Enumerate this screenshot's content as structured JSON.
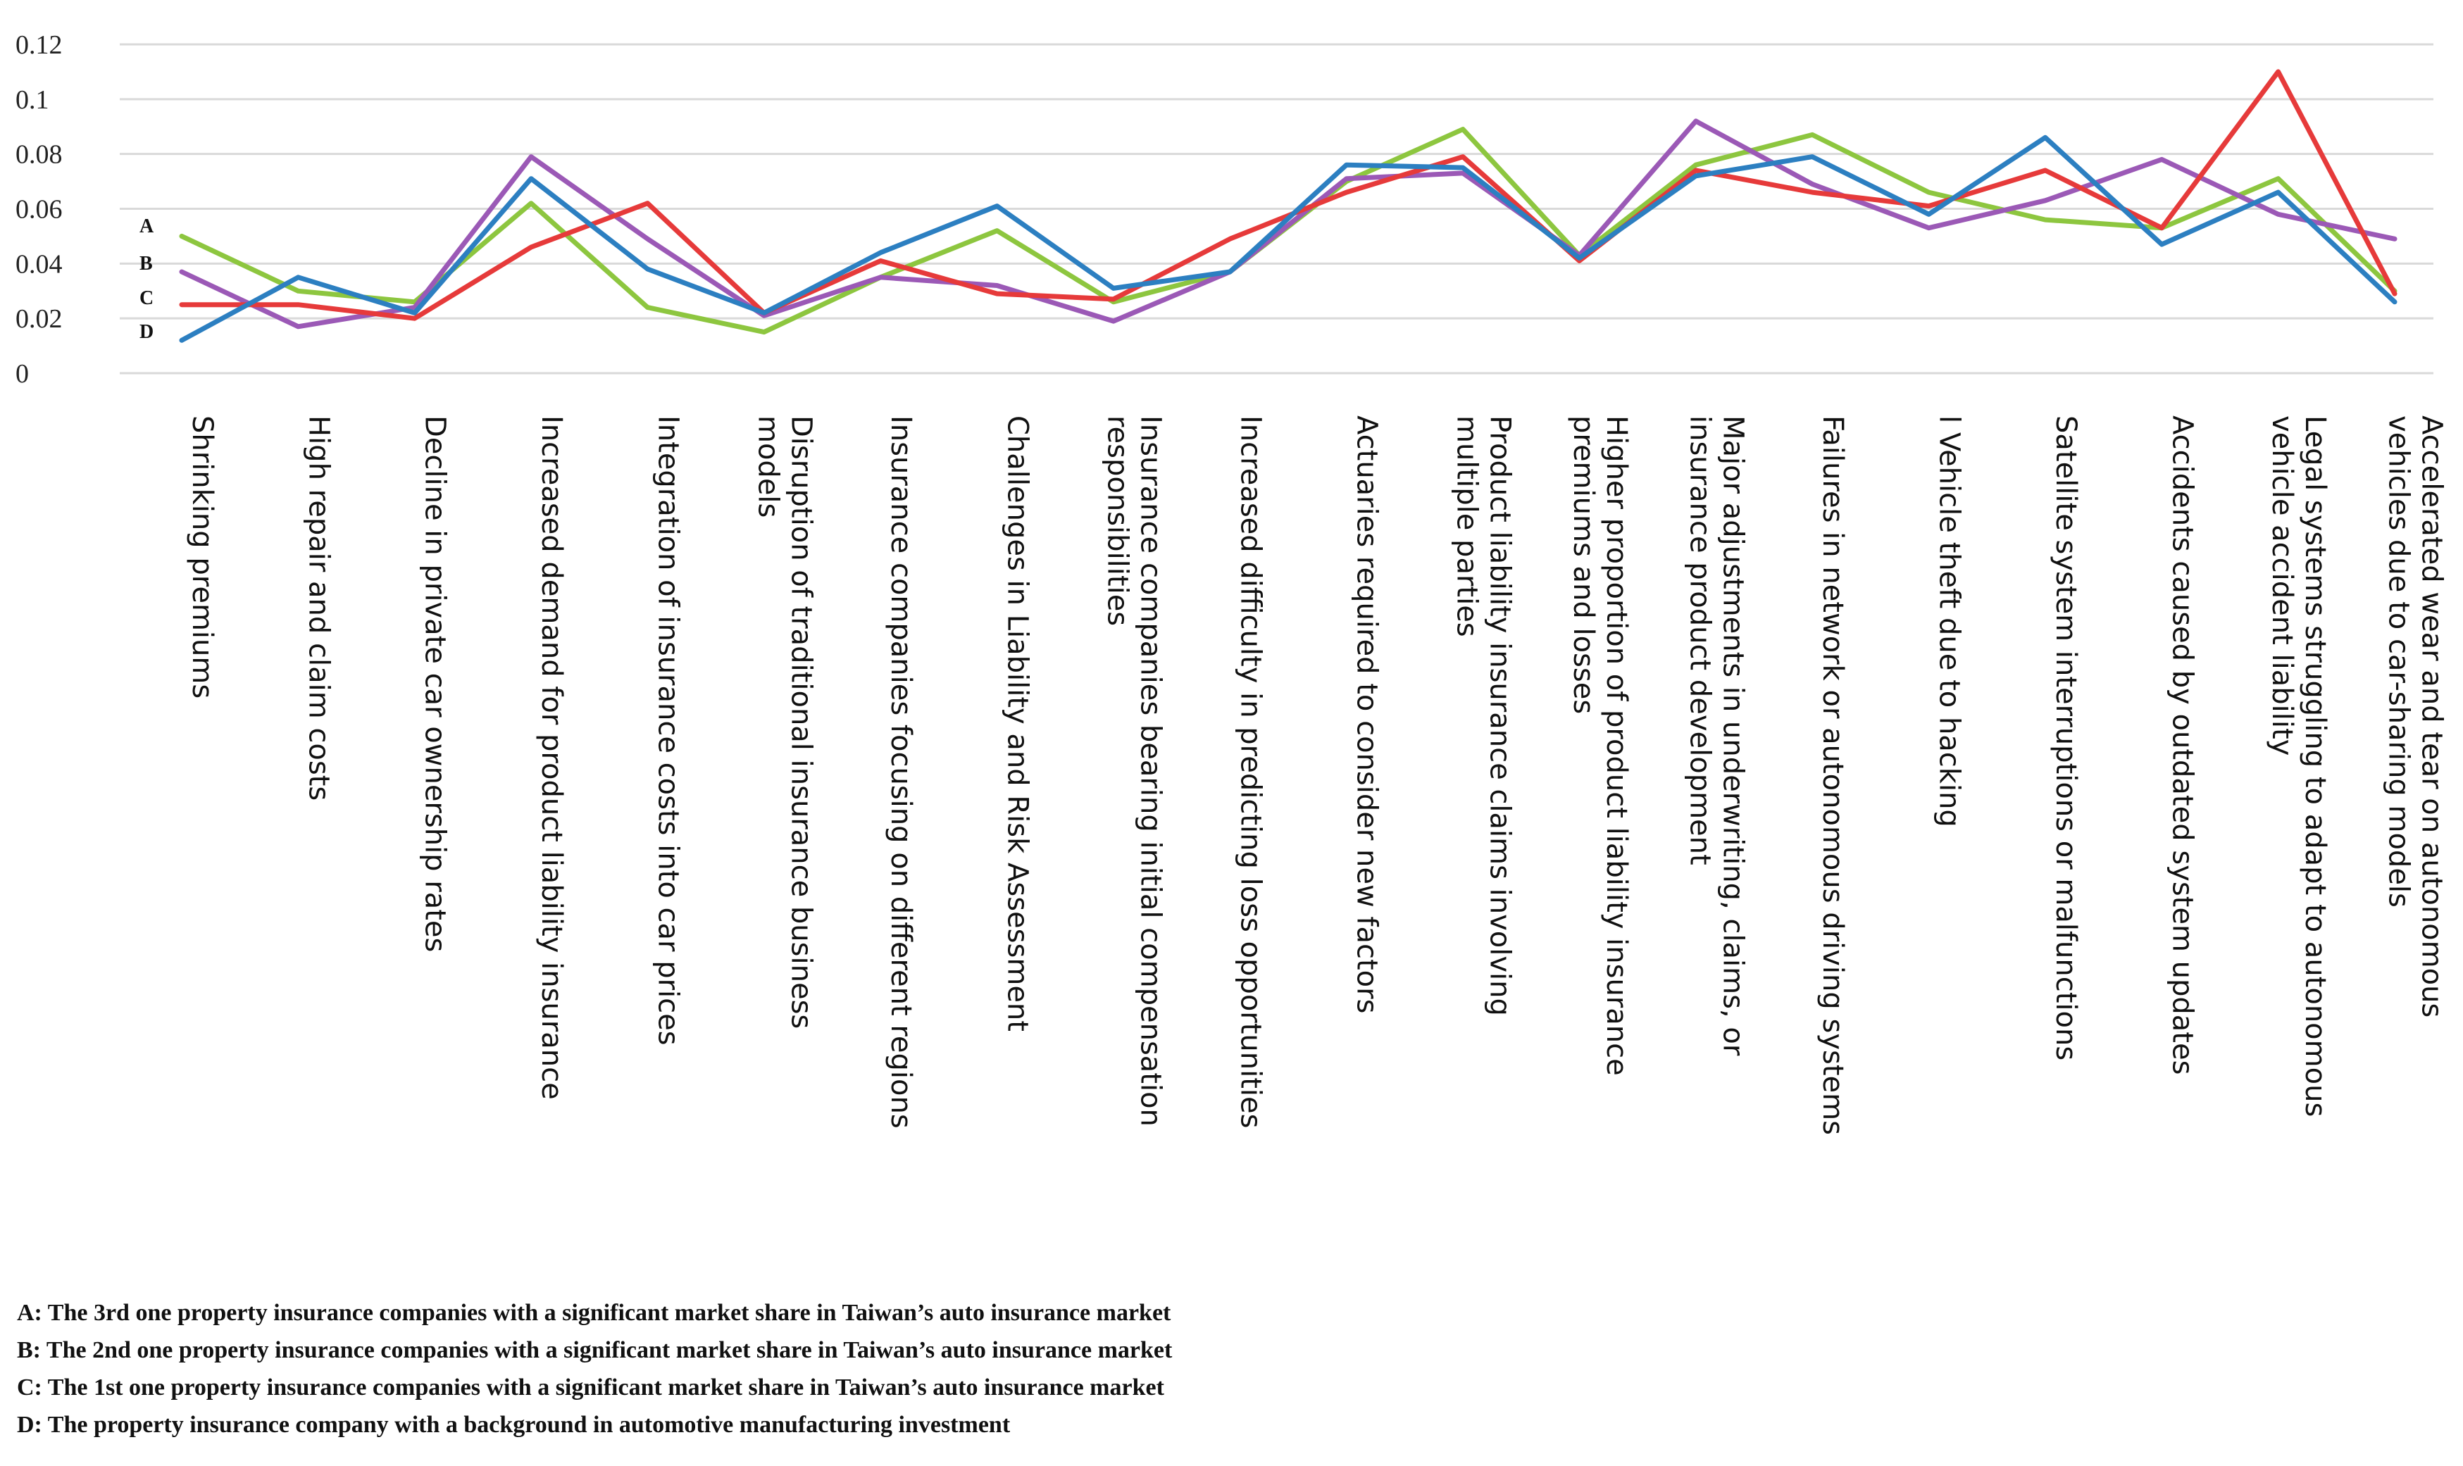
{
  "chart_data": {
    "type": "line",
    "title": "",
    "xlabel": "",
    "ylabel": "",
    "ylim": [
      0,
      0.12
    ],
    "yticks": [
      "0",
      "0.02",
      "0.04",
      "0.06",
      "0.08",
      "0.1",
      "0.12"
    ],
    "grid": true,
    "legend": "none",
    "categories": [
      [
        "Shrinking premiums"
      ],
      [
        "High repair and claim costs"
      ],
      [
        "Decline in private car ownership rates"
      ],
      [
        "Increased demand for product liability insurance"
      ],
      [
        "Integration of insurance costs into car prices"
      ],
      [
        "Disruption of traditional insurance business",
        "models"
      ],
      [
        "Insurance companies focusing on different regions"
      ],
      [
        "Challenges in Liability and Risk Assessment"
      ],
      [
        "Insurance companies bearing initial compensation",
        "responsibilities"
      ],
      [
        "Increased difficulty in predicting loss opportunities"
      ],
      [
        "Actuaries required to consider new factors"
      ],
      [
        "Product liability insurance claims involving",
        "multiple parties"
      ],
      [
        "Higher proportion of product liability insurance",
        "premiums and losses"
      ],
      [
        "Major adjustments in underwriting, claims, or",
        "insurance product development"
      ],
      [
        "Failures in network or autonomous driving systems"
      ],
      [
        "l Vehicle theft due to hacking"
      ],
      [
        "Satellite system interruptions or malfunctions"
      ],
      [
        "Accidents caused by outdated system updates"
      ],
      [
        "Legal systems struggling to adapt to autonomous",
        "vehicle accident liability"
      ],
      [
        "Accelerated wear and tear on autonomous",
        "vehicles due to car-sharing models"
      ]
    ],
    "series": [
      {
        "name": "A",
        "color": "#8dc63f",
        "values": [
          0.05,
          0.03,
          0.026,
          0.062,
          0.024,
          0.015,
          0.035,
          0.052,
          0.026,
          0.037,
          0.07,
          0.089,
          0.043,
          0.076,
          0.087,
          0.066,
          0.056,
          0.053,
          0.071,
          0.03
        ]
      },
      {
        "name": "B",
        "color": "#9b59b6",
        "values": [
          0.037,
          0.017,
          0.024,
          0.079,
          0.049,
          0.021,
          0.035,
          0.032,
          0.019,
          0.037,
          0.071,
          0.073,
          0.043,
          0.092,
          0.069,
          0.053,
          0.063,
          0.078,
          0.058,
          0.049
        ]
      },
      {
        "name": "C",
        "color": "#e63a3a",
        "values": [
          0.025,
          0.025,
          0.02,
          0.046,
          0.062,
          0.022,
          0.041,
          0.029,
          0.027,
          0.049,
          0.066,
          0.079,
          0.041,
          0.074,
          0.066,
          0.061,
          0.074,
          0.053,
          0.11,
          0.029
        ]
      },
      {
        "name": "D",
        "color": "#2c7fc1",
        "values": [
          0.012,
          0.035,
          0.022,
          0.071,
          0.038,
          0.022,
          0.044,
          0.061,
          0.031,
          0.037,
          0.076,
          0.075,
          0.042,
          0.072,
          0.079,
          0.058,
          0.086,
          0.047,
          0.066,
          0.026
        ]
      }
    ]
  },
  "notes": [
    "A: The 3rd one property insurance companies with a significant market share in Taiwan’s auto insurance market",
    "B: The 2nd one property insurance companies with a significant market share in Taiwan’s auto insurance market",
    "C: The 1st one property insurance companies with a significant market share in Taiwan’s auto insurance market",
    "D: The property insurance company with a background in automotive manufacturing investment"
  ]
}
